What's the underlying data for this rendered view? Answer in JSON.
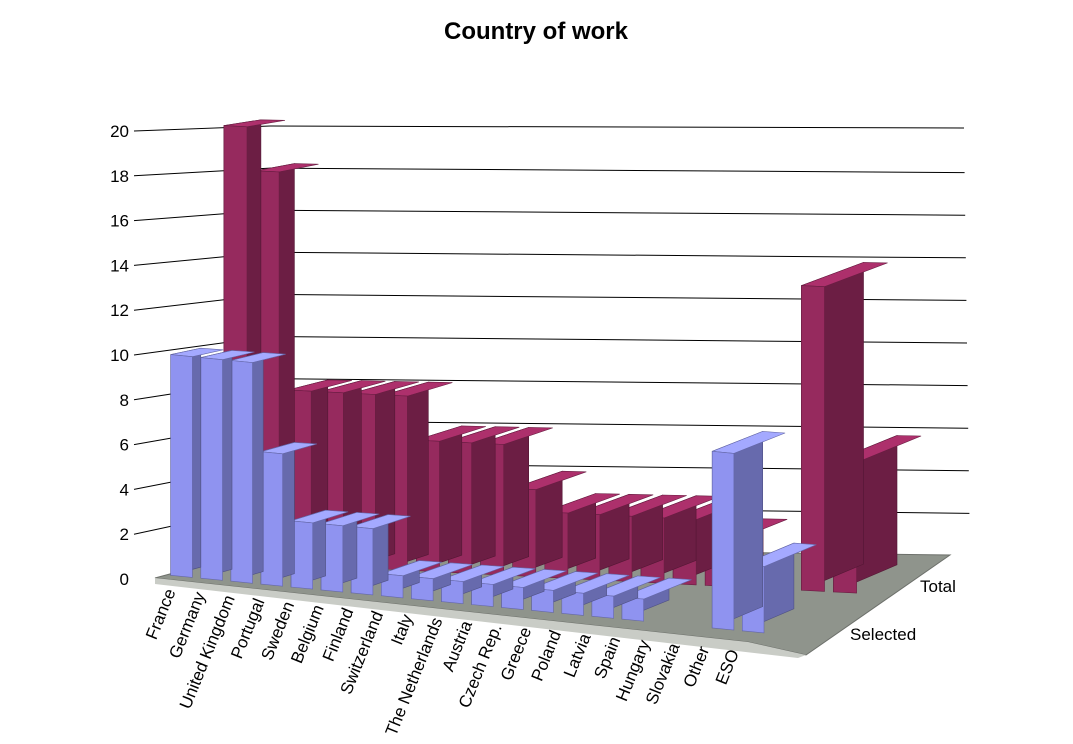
{
  "chart_data": {
    "type": "bar",
    "title": "Country of work",
    "categories": [
      "France",
      "Germany",
      "United Kingdom",
      "Portugal",
      "Sweden",
      "Belgium",
      "Finland",
      "Switzerland",
      "Italy",
      "The Netherlands",
      "Austria",
      "Czech Rep.",
      "Greece",
      "Poland",
      "Latvia",
      "Spain",
      "Hungary",
      "Slovakia",
      "Other",
      "ESO"
    ],
    "series": [
      {
        "name": "Selected",
        "color": "#8f93f0",
        "values": [
          10,
          10,
          10,
          6,
          3,
          3,
          3,
          1,
          1,
          1,
          1,
          1,
          1,
          1,
          1,
          1,
          0,
          0,
          8,
          3
        ]
      },
      {
        "name": "Total",
        "color": "#962a5e",
        "values": [
          20,
          18,
          8,
          8,
          8,
          8,
          6,
          6,
          6,
          4,
          3,
          3,
          3,
          3,
          3,
          2,
          0,
          0,
          14,
          6
        ]
      }
    ],
    "ylim": [
      0,
      20
    ],
    "yticks": [
      "0",
      "2",
      "4",
      "6",
      "8",
      "10",
      "12",
      "14",
      "16",
      "18",
      "20"
    ],
    "grid": true,
    "view": "3d-perspective"
  }
}
